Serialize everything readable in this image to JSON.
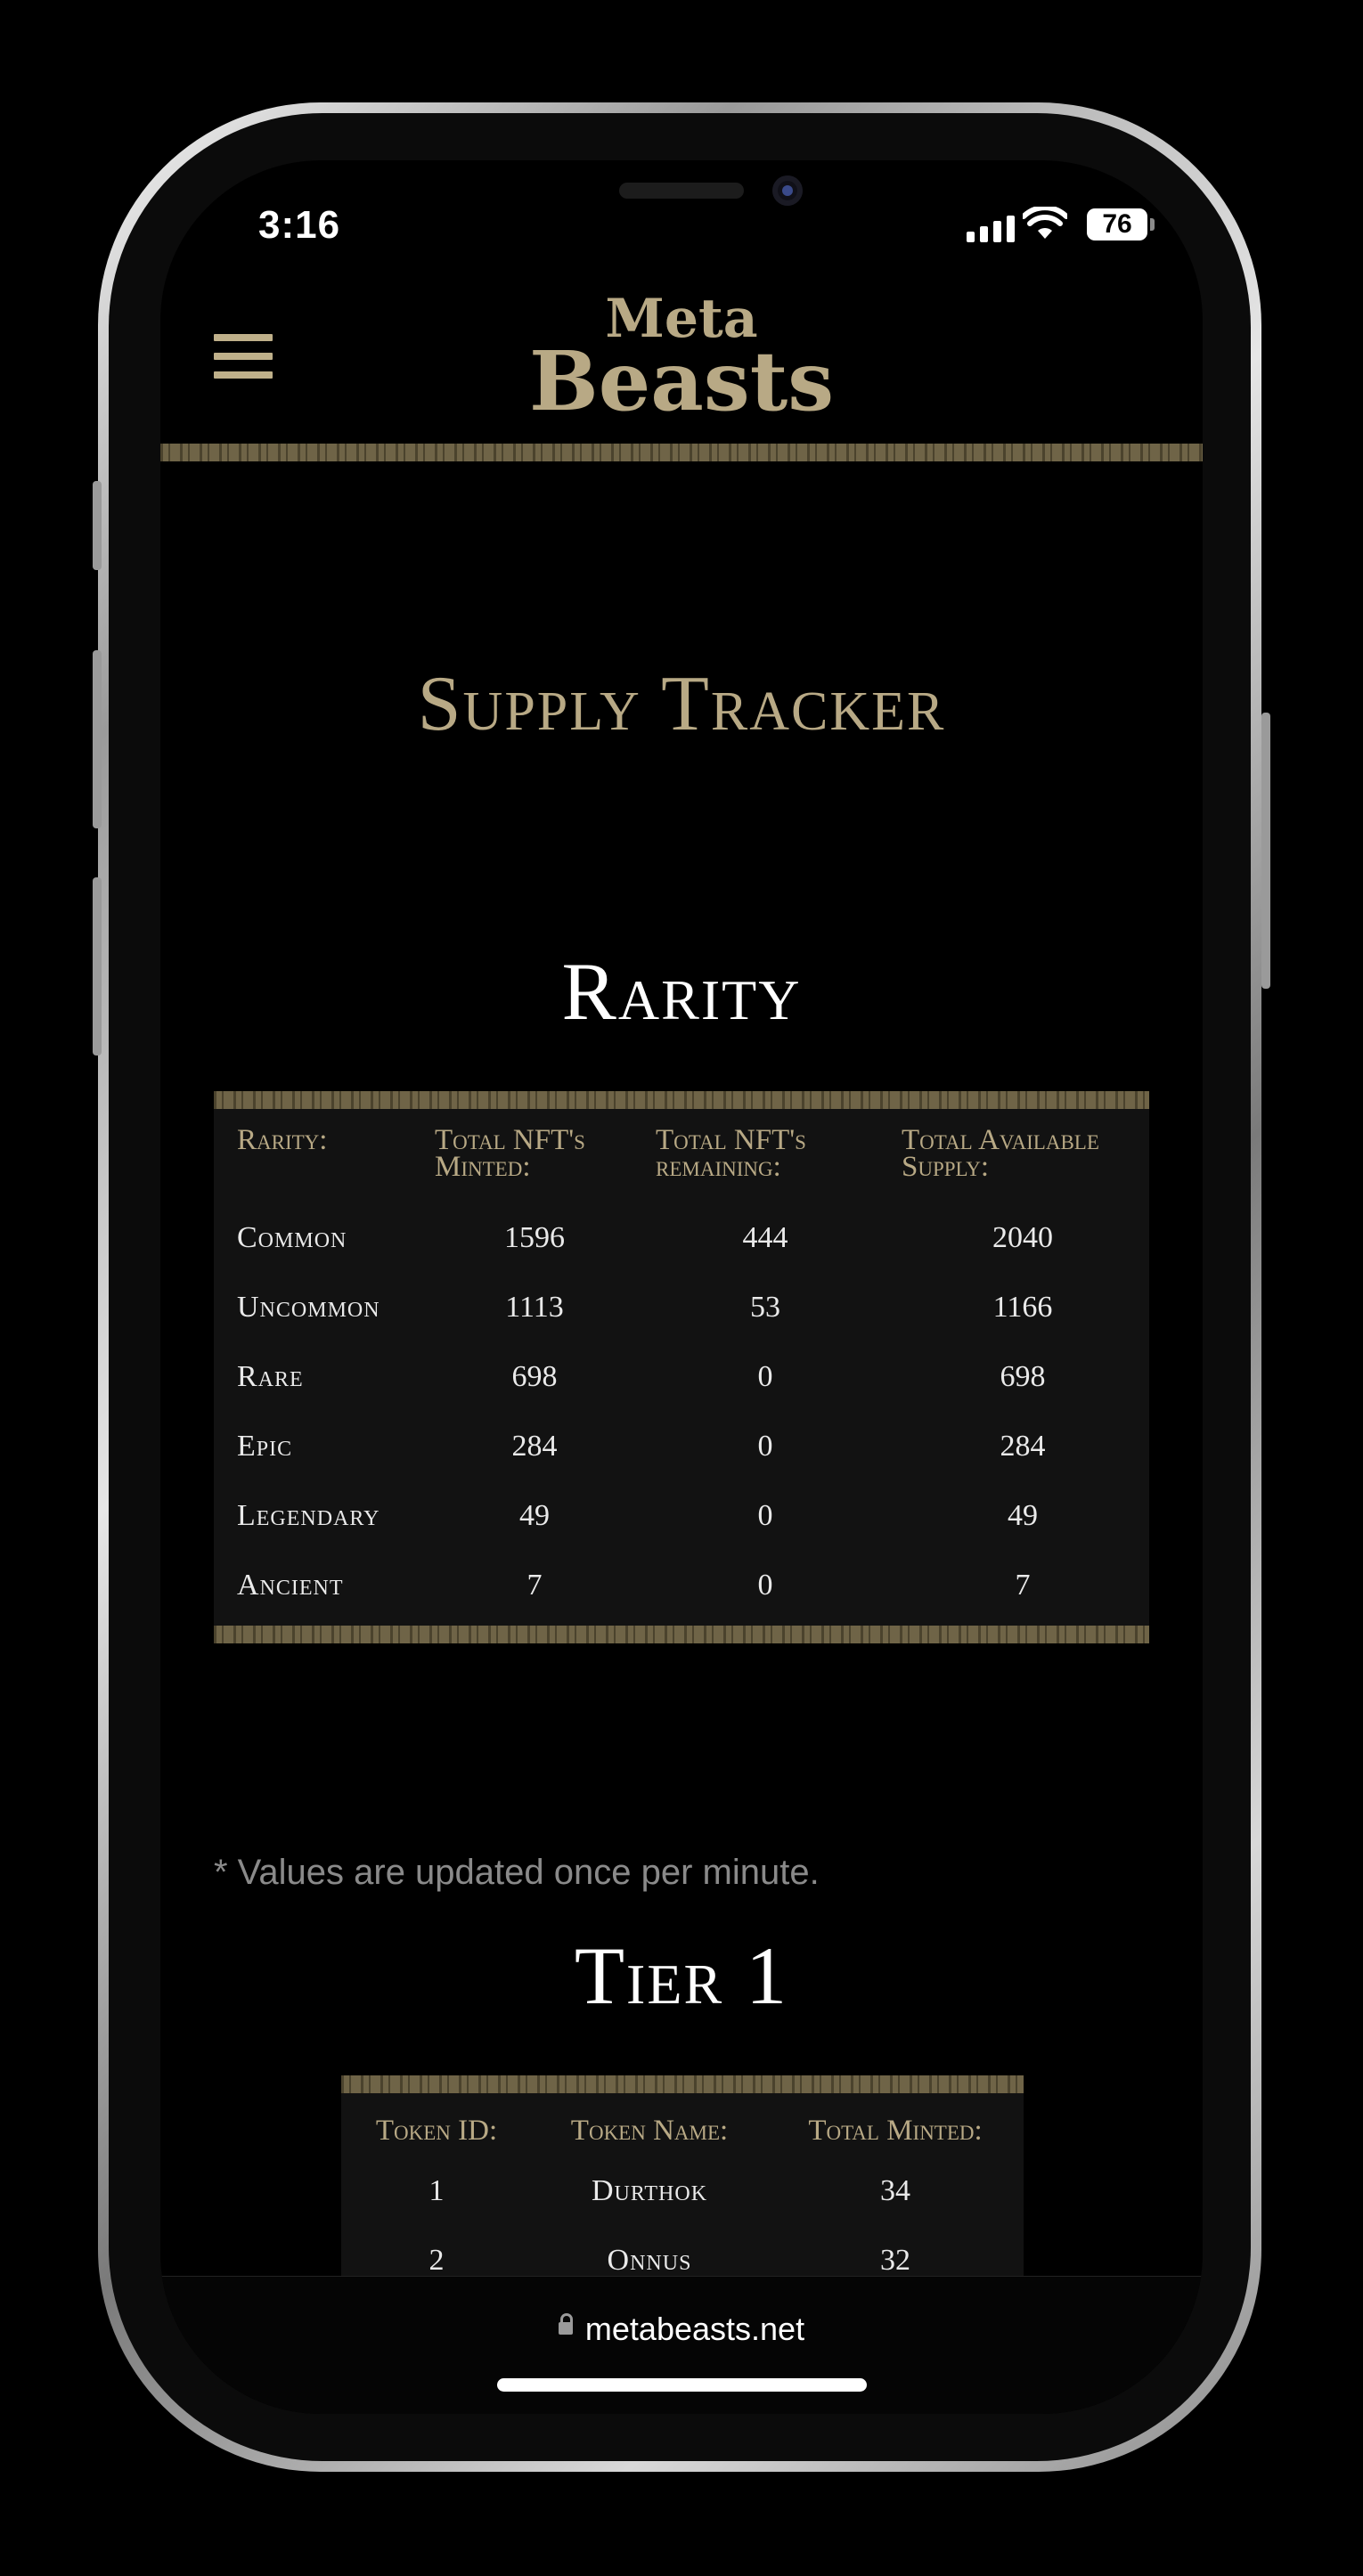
{
  "status_bar": {
    "time": "3:16",
    "battery": "76"
  },
  "header": {
    "logo_line1": "Meta",
    "logo_line2": "Beasts"
  },
  "page": {
    "title": "Supply Tracker"
  },
  "rarity_section": {
    "title": "Rarity",
    "headers": {
      "rarity": "Rarity:",
      "minted": "Total NFT's Minted:",
      "remaining": "Total NFT's remaining:",
      "supply": "Total Available Supply:"
    },
    "rows": [
      {
        "name": "Common",
        "minted": "1596",
        "remaining": "444",
        "supply": "2040"
      },
      {
        "name": "Uncommon",
        "minted": "1113",
        "remaining": "53",
        "supply": "1166"
      },
      {
        "name": "Rare",
        "minted": "698",
        "remaining": "0",
        "supply": "698"
      },
      {
        "name": "Epic",
        "minted": "284",
        "remaining": "0",
        "supply": "284"
      },
      {
        "name": "Legendary",
        "minted": "49",
        "remaining": "0",
        "supply": "49"
      },
      {
        "name": "Ancient",
        "minted": "7",
        "remaining": "0",
        "supply": "7"
      }
    ],
    "note": "* Values are updated once per minute."
  },
  "tier_section": {
    "title": "Tier 1",
    "headers": {
      "id": "Token ID:",
      "name": "Token Name:",
      "minted": "Total Minted:"
    },
    "rows": [
      {
        "id": "1",
        "name": "Durthok",
        "minted": "34"
      },
      {
        "id": "2",
        "name": "Onnus",
        "minted": "32"
      }
    ]
  },
  "browser": {
    "url": "metabeasts.net"
  },
  "colors": {
    "accent_gold": "#b8a985",
    "table_bg": "#121212",
    "page_bg": "#000000"
  }
}
